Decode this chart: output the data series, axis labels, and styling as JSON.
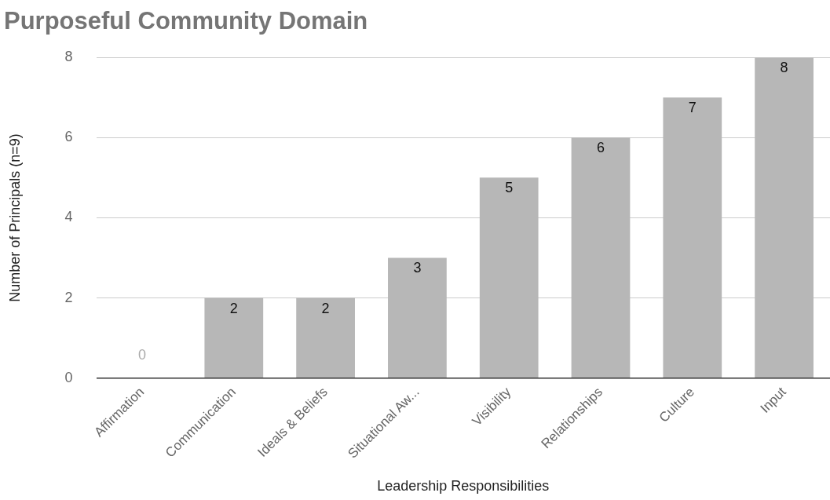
{
  "chart_data": {
    "type": "bar",
    "title": "Purposeful Community Domain",
    "xlabel": "Leadership Responsibilities",
    "ylabel": "Number of Principals (n=9)",
    "categories": [
      "Affirmation",
      "Communication",
      "Ideals & Beliefs",
      "Situational Aw...",
      "Visibility",
      "Relationships",
      "Culture",
      "Input"
    ],
    "values": [
      0,
      2,
      2,
      3,
      5,
      6,
      7,
      8
    ],
    "color": "#b7b7b7",
    "ylim": [
      0,
      8
    ],
    "yticks": [
      0,
      2,
      4,
      6,
      8
    ],
    "grid": "y",
    "legend": false,
    "data_labels": true
  }
}
